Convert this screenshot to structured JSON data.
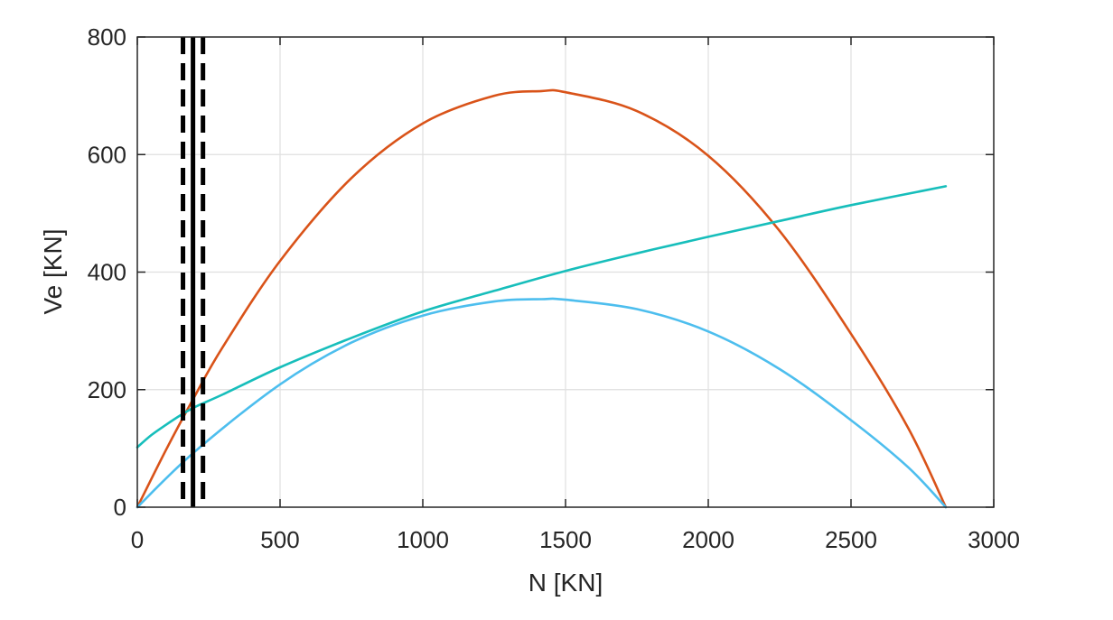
{
  "chart_data": {
    "type": "line",
    "title": "",
    "xlabel": "N [KN]",
    "ylabel": "Ve [KN]",
    "xlim": [
      0,
      3000
    ],
    "ylim": [
      0,
      800
    ],
    "xticks": [
      0,
      500,
      1000,
      1500,
      2000,
      2500,
      3000
    ],
    "yticks": [
      0,
      200,
      400,
      600,
      800
    ],
    "grid": true,
    "legend": "none",
    "series": [
      {
        "color": "#D95319",
        "style": "solid",
        "x": [
          0,
          100,
          200,
          300,
          500,
          750,
          1000,
          1250,
          1416,
          1500,
          1750,
          2000,
          2250,
          2500,
          2700,
          2832
        ],
        "y": [
          0,
          97,
          188,
          273,
          419,
          560,
          653,
          700,
          708,
          706,
          674,
          598,
          470,
          295,
          135,
          0
        ]
      },
      {
        "color": "#4DBEEE",
        "style": "solid",
        "x": [
          0,
          200,
          500,
          750,
          1000,
          1250,
          1416,
          1500,
          1750,
          2000,
          2250,
          2500,
          2700,
          2832
        ],
        "y": [
          0,
          94,
          209,
          280,
          326,
          350,
          354,
          353,
          337,
          299,
          235,
          148,
          68,
          0
        ]
      },
      {
        "color": "#17BEBB",
        "style": "solid",
        "x": [
          0,
          50,
          100,
          150,
          200,
          300,
          500,
          750,
          1000,
          1250,
          1500,
          1750,
          2000,
          2250,
          2500,
          2832
        ],
        "y": [
          102,
          123,
          140,
          156,
          170,
          192,
          238,
          288,
          333,
          368,
          402,
          432,
          460,
          487,
          514,
          546
        ]
      }
    ],
    "vertical_lines": [
      {
        "x": 160,
        "style": "dashed",
        "color": "#000000"
      },
      {
        "x": 195,
        "style": "solid",
        "color": "#000000"
      },
      {
        "x": 230,
        "style": "dashed",
        "color": "#000000"
      }
    ]
  }
}
